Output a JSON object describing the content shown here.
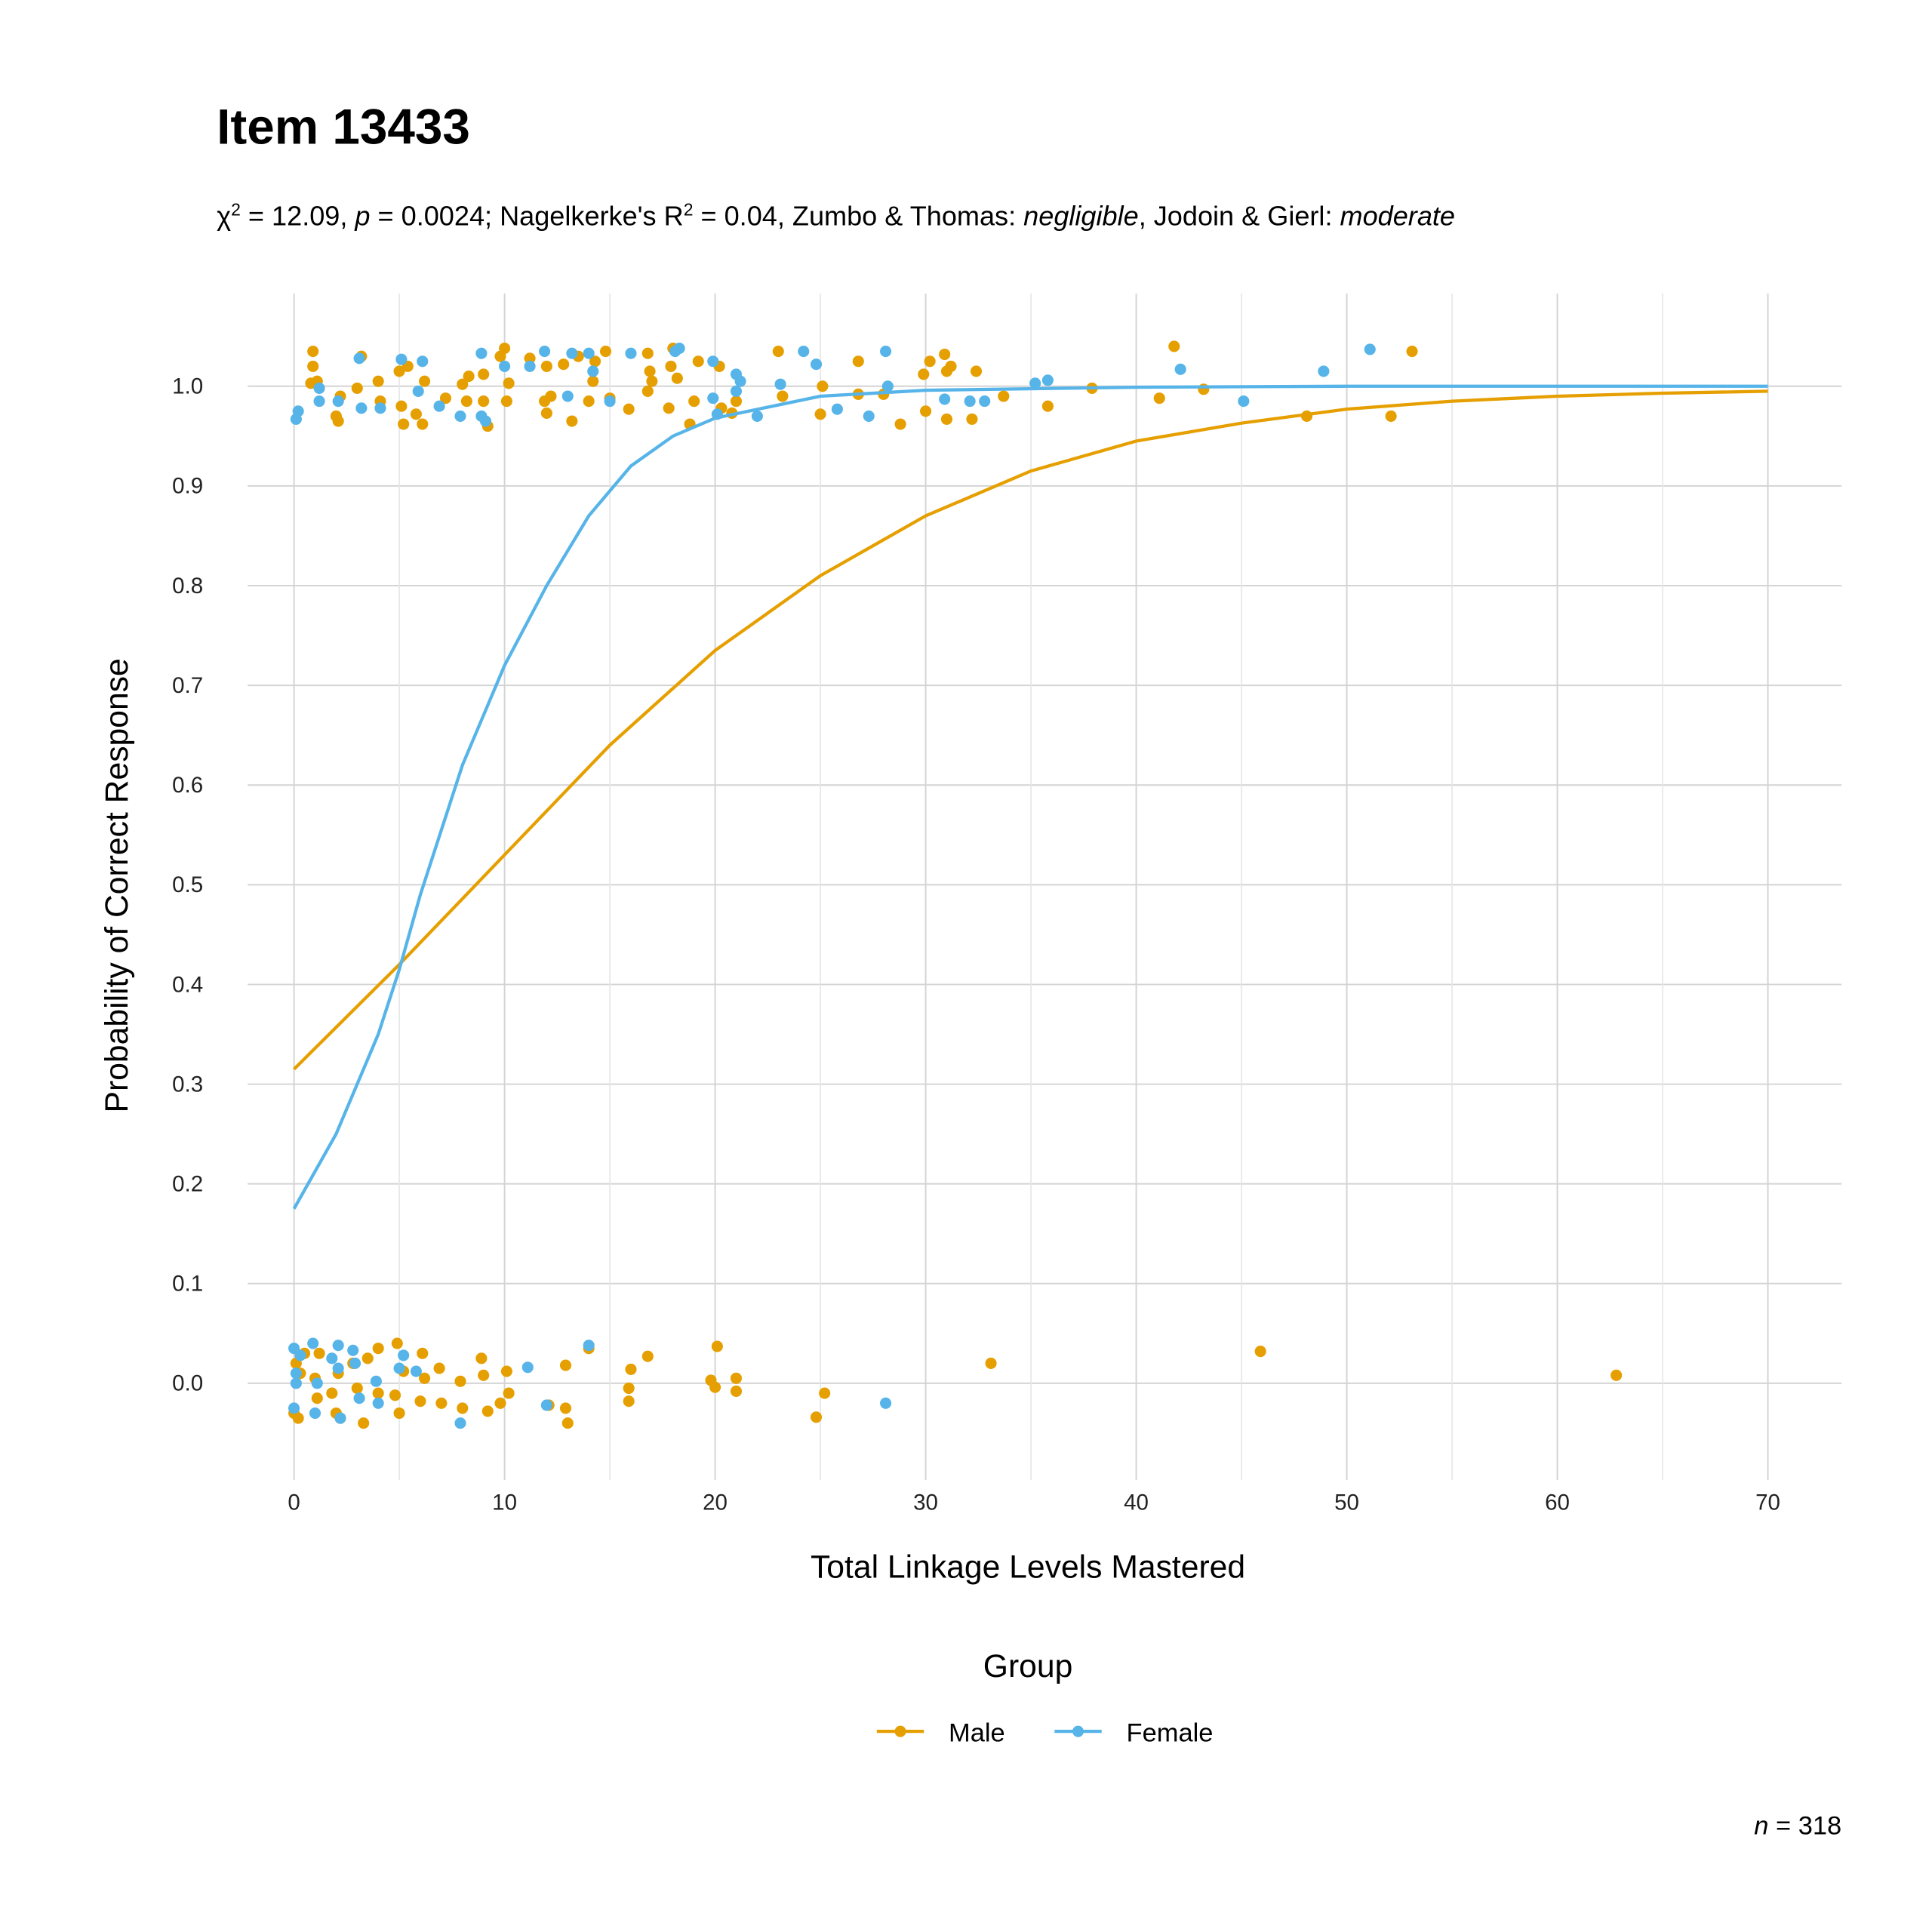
{
  "chart_data": {
    "type": "scatter",
    "title": "Item 13433",
    "subtitle": [
      "χ",
      "2",
      " = 12.09, ",
      "p",
      " = 0.0024; Nagelkerke's R",
      "2",
      " = 0.04, Zumbo & Thomas: ",
      "negligible",
      ", Jodoin & Gierl: ",
      "moderate"
    ],
    "x_label": "Total Linkage Levels Mastered",
    "y_label": "Probability of Correct Response",
    "legend_title": "Group",
    "legend_position": "bottom",
    "note": [
      "n",
      " = 318"
    ],
    "grid": true,
    "xlim": [
      -2.2,
      73.5
    ],
    "ylim": [
      -0.097,
      1.093
    ],
    "xticks": [
      0,
      10,
      20,
      30,
      40,
      50,
      60,
      70
    ],
    "x_minor_ticks": [
      5,
      15,
      25,
      35,
      45,
      55,
      65
    ],
    "yticks": [
      {
        "value": 0,
        "label": "0.0"
      },
      0.1,
      0.2,
      0.3,
      0.4,
      0.5,
      0.6,
      0.7,
      0.8,
      0.9,
      {
        "value": 1,
        "label": "1.0"
      }
    ],
    "series": [
      {
        "name": "Male",
        "color": "#E69F00",
        "x": [
          0.9,
          0.9,
          0.8,
          1.1,
          2,
          2.2,
          2.1,
          3,
          3.2,
          4,
          4.1,
          5,
          5.1,
          5.2,
          5.4,
          5.8,
          6.2,
          6.1,
          7.2,
          8,
          8.2,
          8.3,
          9,
          9,
          9.2,
          9.8,
          10,
          10.1,
          10.2,
          11.2,
          11.9,
          12,
          12,
          12.2,
          12.8,
          13.2,
          13.5,
          14,
          14.2,
          14.3,
          14.8,
          15,
          15.9,
          16.8,
          16.9,
          16.8,
          17,
          17.8,
          17.9,
          18,
          18.2,
          18.8,
          19,
          19.2,
          20.2,
          20.3,
          20.8,
          21,
          23,
          23.2,
          25,
          25.1,
          26.8,
          26.8,
          28,
          28.8,
          29.9,
          30,
          30.2,
          30.9,
          31,
          31.2,
          31,
          32.2,
          32.4,
          33.7,
          35.8,
          37.9,
          41.1,
          41.8,
          43.2,
          48.1,
          52.1,
          53.1,
          0,
          0.1,
          0.2,
          0.3,
          0.5,
          1,
          1.1,
          1.2,
          1.8,
          2,
          2.1,
          2.2,
          2.8,
          3,
          3.3,
          3.5,
          4,
          4,
          4.8,
          4.9,
          5,
          5.2,
          6,
          6.1,
          6.2,
          7,
          6.9,
          7.9,
          8,
          8.9,
          9,
          9.2,
          9.8,
          10.1,
          10.2,
          12.1,
          12.9,
          13,
          12.9,
          14,
          15.9,
          15.9,
          16,
          16.8,
          19.8,
          20,
          20.1,
          21,
          21,
          24.8,
          25.2,
          33.1,
          45.9,
          62.8
        ],
        "values": [
          1.02,
          1.035,
          1.003,
          1.005,
          0.97,
          0.99,
          0.965,
          0.998,
          1.03,
          1.005,
          0.985,
          1.015,
          0.98,
          0.962,
          1.02,
          0.972,
          1.005,
          0.962,
          0.988,
          1.002,
          0.985,
          1.01,
          1.012,
          0.985,
          0.96,
          1.03,
          1.038,
          0.985,
          1.003,
          1.028,
          0.985,
          1.02,
          0.973,
          0.99,
          1.022,
          0.965,
          1.03,
          0.985,
          1.005,
          1.025,
          1.035,
          0.988,
          0.977,
          1.033,
          1.015,
          0.995,
          1.005,
          0.978,
          1.02,
          1.038,
          1.008,
          0.962,
          0.985,
          1.025,
          1.02,
          0.978,
          0.973,
          0.985,
          1.035,
          0.99,
          0.972,
          1.0,
          0.992,
          1.025,
          0.992,
          0.962,
          1.012,
          0.975,
          1.025,
          1.032,
          1.015,
          1.02,
          0.967,
          0.967,
          1.015,
          0.99,
          0.98,
          0.998,
          0.988,
          1.04,
          0.997,
          0.97,
          0.97,
          1.035,
          -0.03,
          0.02,
          -0.035,
          0.01,
          0.03,
          0.005,
          -0.015,
          0.03,
          -0.01,
          -0.03,
          0.01,
          -0.035,
          0.02,
          -0.005,
          -0.04,
          0.025,
          -0.01,
          0.035,
          -0.012,
          0.04,
          -0.03,
          0.012,
          -0.018,
          0.03,
          0.005,
          -0.02,
          0.015,
          0.002,
          -0.025,
          0.025,
          0.008,
          -0.028,
          -0.02,
          0.012,
          -0.01,
          -0.022,
          -0.025,
          -0.04,
          0.018,
          0.035,
          -0.005,
          -0.018,
          0.014,
          0.027,
          0.003,
          -0.004,
          0.037,
          0.005,
          -0.008,
          -0.034,
          -0.01,
          0.02,
          0.032,
          0.008
        ],
        "curve": {
          "x": [
            0,
            5,
            10,
            15,
            20,
            25,
            30,
            35,
            40,
            45,
            50,
            55,
            60,
            65,
            70
          ],
          "values": [
            0.315,
            0.42,
            0.53,
            0.64,
            0.735,
            0.81,
            0.87,
            0.915,
            0.945,
            0.963,
            0.977,
            0.985,
            0.99,
            0.993,
            0.995
          ]
        }
      },
      {
        "name": "Female",
        "color": "#56B4E9",
        "x": [
          0.1,
          0.2,
          1.2,
          1.2,
          2.1,
          3.1,
          3.2,
          4.1,
          5.1,
          5.9,
          6.1,
          6.9,
          7.9,
          8.9,
          8.9,
          9.1,
          10,
          11.2,
          11.9,
          13,
          13.2,
          14,
          14.2,
          15,
          16,
          18.1,
          18.3,
          19.9,
          19.9,
          20.1,
          21,
          21,
          21.2,
          22,
          23.1,
          24.2,
          24.8,
          25.8,
          27.3,
          28.1,
          28.2,
          30.9,
          32.1,
          32.8,
          35.2,
          35.8,
          42.1,
          45.1,
          48.9,
          51.1,
          0,
          0,
          0.1,
          0.1,
          0.3,
          0.9,
          1,
          1.1,
          1.8,
          2.1,
          2.1,
          2.2,
          2.8,
          2.9,
          3.1,
          3.9,
          4,
          5,
          5.2,
          5.8,
          7.9,
          11.1,
          12,
          14,
          28.1
        ],
        "values": [
          0.967,
          0.975,
          0.985,
          0.998,
          0.985,
          1.028,
          0.978,
          0.978,
          1.027,
          0.995,
          1.025,
          0.98,
          0.97,
          1.033,
          0.97,
          0.965,
          1.02,
          1.02,
          1.035,
          0.99,
          1.033,
          1.033,
          1.015,
          0.985,
          1.033,
          1.035,
          1.038,
          1.025,
          0.988,
          0.972,
          1.012,
          0.995,
          1.005,
          0.97,
          1.002,
          1.035,
          1.022,
          0.977,
          0.97,
          1.035,
          1.0,
          0.987,
          0.985,
          0.985,
          1.003,
          1.006,
          1.017,
          0.985,
          1.015,
          1.037,
          0.035,
          -0.025,
          0.01,
          0.0,
          0.028,
          0.04,
          -0.03,
          0.0,
          0.025,
          0.015,
          0.038,
          -0.035,
          0.033,
          0.02,
          -0.015,
          0.002,
          -0.02,
          0.015,
          0.028,
          0.012,
          -0.04,
          0.016,
          -0.022,
          0.038,
          -0.02
        ],
        "curve": {
          "x": [
            0,
            2,
            4,
            5,
            6,
            8,
            10,
            12,
            14,
            16,
            18,
            20,
            25,
            30,
            40,
            50,
            60,
            70
          ],
          "values": [
            0.175,
            0.25,
            0.35,
            0.415,
            0.49,
            0.62,
            0.72,
            0.8,
            0.87,
            0.92,
            0.95,
            0.968,
            0.99,
            0.996,
            0.999,
            1.0,
            1.0,
            1.0
          ]
        }
      }
    ]
  }
}
